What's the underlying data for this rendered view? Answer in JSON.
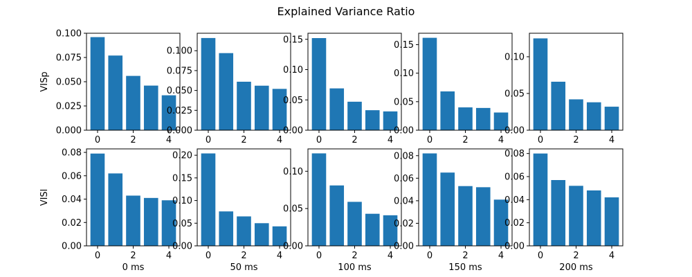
{
  "chart_data": {
    "type": "bar",
    "title": "Explained Variance Ratio",
    "bar_color": "#1f77b4",
    "categories": [
      0,
      1,
      2,
      3,
      4
    ],
    "x_ticks": [
      0,
      2,
      4
    ],
    "rows": [
      {
        "ylabel": "VISp"
      },
      {
        "ylabel": "VISl"
      }
    ],
    "columns": [
      {
        "xlabel": "0 ms"
      },
      {
        "xlabel": "50 ms"
      },
      {
        "xlabel": "100 ms"
      },
      {
        "xlabel": "150 ms"
      },
      {
        "xlabel": "200 ms"
      }
    ],
    "panels": [
      [
        {
          "values": [
            0.096,
            0.077,
            0.056,
            0.046,
            0.036
          ],
          "ylim": [
            0,
            0.1
          ],
          "yticks": [
            "0.000",
            "0.025",
            "0.050",
            "0.075",
            "0.100"
          ],
          "ytick_values": [
            0,
            0.025,
            0.05,
            0.075,
            0.1
          ]
        },
        {
          "values": [
            0.116,
            0.097,
            0.061,
            0.056,
            0.052
          ],
          "ylim": [
            0,
            0.122
          ],
          "yticks": [
            "0.000",
            "0.025",
            "0.050",
            "0.075",
            "0.100"
          ],
          "ytick_values": [
            0,
            0.025,
            0.05,
            0.075,
            0.1
          ]
        },
        {
          "values": [
            0.152,
            0.069,
            0.047,
            0.033,
            0.031
          ],
          "ylim": [
            0,
            0.16
          ],
          "yticks": [
            "0.00",
            "0.05",
            "0.10",
            "0.15"
          ],
          "ytick_values": [
            0,
            0.05,
            0.1,
            0.15
          ]
        },
        {
          "values": [
            0.162,
            0.068,
            0.04,
            0.039,
            0.031
          ],
          "ylim": [
            0,
            0.17
          ],
          "yticks": [
            "0.00",
            "0.05",
            "0.10",
            "0.15"
          ],
          "ytick_values": [
            0,
            0.05,
            0.1,
            0.15
          ]
        },
        {
          "values": [
            0.125,
            0.066,
            0.042,
            0.038,
            0.032
          ],
          "ylim": [
            0,
            0.132
          ],
          "yticks": [
            "0.00",
            "0.05",
            "0.10"
          ],
          "ytick_values": [
            0,
            0.05,
            0.1
          ]
        }
      ],
      [
        {
          "values": [
            0.079,
            0.062,
            0.043,
            0.041,
            0.039
          ],
          "ylim": [
            0,
            0.083
          ],
          "yticks": [
            "0.00",
            "0.02",
            "0.04",
            "0.06",
            "0.08"
          ],
          "ytick_values": [
            0,
            0.02,
            0.04,
            0.06,
            0.08
          ]
        },
        {
          "values": [
            0.204,
            0.076,
            0.065,
            0.05,
            0.043
          ],
          "ylim": [
            0,
            0.214
          ],
          "yticks": [
            "0.00",
            "0.05",
            "0.10",
            "0.15",
            "0.20"
          ],
          "ytick_values": [
            0,
            0.05,
            0.1,
            0.15,
            0.2
          ]
        },
        {
          "values": [
            0.124,
            0.081,
            0.059,
            0.043,
            0.041
          ],
          "ylim": [
            0,
            0.13
          ],
          "yticks": [
            "0.00",
            "0.05",
            "0.10"
          ],
          "ytick_values": [
            0,
            0.05,
            0.1
          ]
        },
        {
          "values": [
            0.082,
            0.065,
            0.053,
            0.052,
            0.041
          ],
          "ylim": [
            0,
            0.086
          ],
          "yticks": [
            "0.00",
            "0.02",
            "0.04",
            "0.06",
            "0.08"
          ],
          "ytick_values": [
            0,
            0.02,
            0.04,
            0.06,
            0.08
          ]
        },
        {
          "values": [
            0.08,
            0.057,
            0.052,
            0.048,
            0.042
          ],
          "ylim": [
            0,
            0.084
          ],
          "yticks": [
            "0.00",
            "0.02",
            "0.04",
            "0.06",
            "0.08"
          ],
          "ytick_values": [
            0,
            0.02,
            0.04,
            0.06,
            0.08
          ]
        }
      ]
    ]
  }
}
